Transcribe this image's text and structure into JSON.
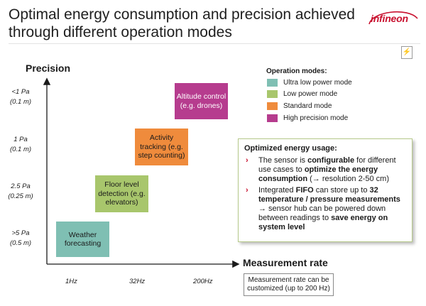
{
  "header": {
    "title_line1": "Optimal energy consumption and precision achieved",
    "title_line2": "through different operation modes",
    "logo_text": "infineon",
    "corner_icon": "document-icon"
  },
  "chart": {
    "y_axis_title": "Precision",
    "x_axis_title": "Measurement rate",
    "y_ticks": [
      {
        "line1": "<1 Pa",
        "line2": "(0.1 m)"
      },
      {
        "line1": "1 Pa",
        "line2": "(0.1 m)"
      },
      {
        "line1": "2.5 Pa",
        "line2": "(0.25 m)"
      },
      {
        "line1": ">5 Pa",
        "line2": "(0.5 m)"
      }
    ],
    "x_ticks": [
      "1Hz",
      "32Hz",
      "200Hz"
    ],
    "modes": [
      {
        "label": "Weather forecasting",
        "mode": "Ultra low power mode"
      },
      {
        "label": "Floor level detection (e.g. elevators)",
        "mode": "Low power mode"
      },
      {
        "label": "Activity tracking (e.g. step counting)",
        "mode": "Standard mode"
      },
      {
        "label": "Altitude control (e.g. drones)",
        "mode": "High precision mode"
      }
    ]
  },
  "boxes": {
    "weather": "Weather forecasting",
    "floor": "Floor level detection (e.g. elevators)",
    "activity": "Activity tracking (e.g. step counting)",
    "altitude": "Altitude control (e.g. drones)"
  },
  "legend": {
    "title": "Operation modes:",
    "items": [
      {
        "label": "Ultra low power mode",
        "color": "#7fbfb3"
      },
      {
        "label": "Low power mode",
        "color": "#a8c66c"
      },
      {
        "label": "Standard mode",
        "color": "#ef8b3c"
      },
      {
        "label": "High precision mode",
        "color": "#b63c8e"
      }
    ]
  },
  "callout": {
    "title": "Optimized energy usage:",
    "b1_pre": "The sensor is ",
    "b1_bold1": "configurable",
    "b1_mid": " for different use cases to ",
    "b1_bold2": "optimize the energy consumption",
    "b1_post": " (→ resolution 2-50 cm)",
    "b2_pre": "Integrated ",
    "b2_bold1": "FIFO",
    "b2_mid1": " can store up to ",
    "b2_bold2": "32 temperature / pressure measurements",
    "b2_mid2": " → sensor hub can be powered down between readings to ",
    "b2_bold3": "save energy on system level",
    "bullet_glyph": "›"
  },
  "note": "Measurement rate can be customized (up to 200 Hz)",
  "colors": {
    "brand": "#c8102e",
    "teal": "#7fbfb3",
    "green": "#a8c66c",
    "orange": "#ef8b3c",
    "magenta": "#b63c8e"
  }
}
